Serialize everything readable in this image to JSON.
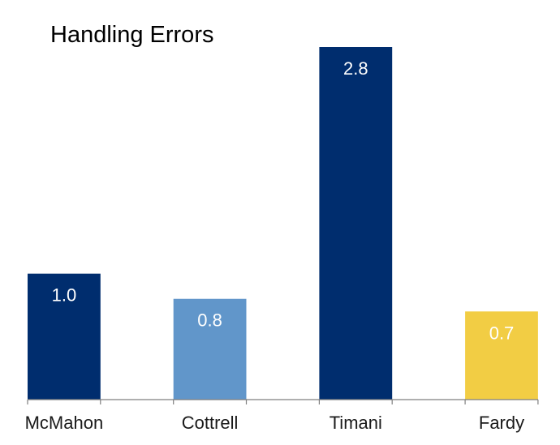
{
  "chart_data": {
    "type": "bar",
    "title": "Handling Errors",
    "categories": [
      "McMahon",
      "Cottrell",
      "Timani",
      "Fardy"
    ],
    "values": [
      1.0,
      0.8,
      2.8,
      0.7
    ],
    "value_labels": [
      "1.0",
      "0.8",
      "2.8",
      "0.7"
    ],
    "colors": [
      "#002d6e",
      "#6196ca",
      "#002d6e",
      "#f2cd44"
    ],
    "xlabel": "",
    "ylabel": "",
    "ylim": [
      0,
      2.8
    ],
    "grid": false,
    "legend": "none"
  }
}
